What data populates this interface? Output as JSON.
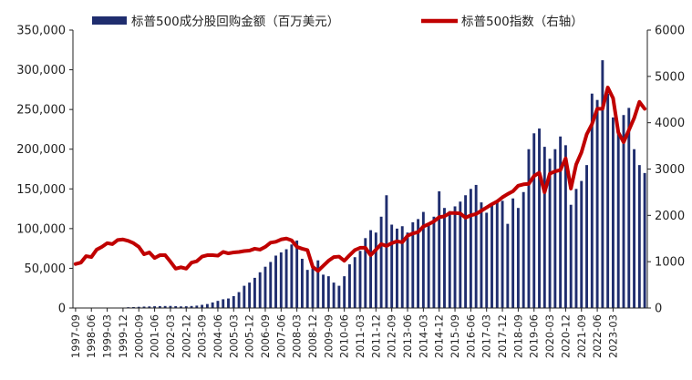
{
  "chart_data": {
    "type": "bar",
    "legend_position": "top",
    "colors": {
      "bars": "#1f2d6e",
      "line": "#c00000",
      "axis": "#222222"
    },
    "y_left": {
      "min": 0,
      "max": 350000,
      "step": 50000,
      "tick_labels": [
        "0",
        "50,000",
        "100,000",
        "150,000",
        "200,000",
        "250,000",
        "300,000",
        "350,000"
      ]
    },
    "y_right": {
      "min": 0,
      "max": 6000,
      "step": 1000,
      "tick_labels": [
        "0",
        "1000",
        "2000",
        "3000",
        "4000",
        "5000",
        "6000"
      ]
    },
    "x_tick_labels": [
      "1997-09",
      "1998-06",
      "1999-03",
      "1999-12",
      "2000-09",
      "2001-06",
      "2002-03",
      "2002-12",
      "2003-09",
      "2004-06",
      "2005-03",
      "2005-12",
      "2006-09",
      "2007-06",
      "2008-03",
      "2008-12",
      "2009-09",
      "2010-06",
      "2011-03",
      "2011-12",
      "2012-09",
      "2013-06",
      "2014-03",
      "2014-12",
      "2015-09",
      "2016-06",
      "2017-03",
      "2017-12",
      "2018-09",
      "2019-06",
      "2020-03",
      "2020-12",
      "2021-09",
      "2022-06",
      "2023-03"
    ],
    "series": [
      {
        "name": "标普500成分股回购金额（百万美元）",
        "type": "bar",
        "axis": "left",
        "start_quarter": "1997-09",
        "values": [
          0,
          0,
          0,
          0,
          0,
          0,
          0,
          0,
          0,
          0,
          1000,
          1200,
          1500,
          1800,
          2000,
          2200,
          2400,
          2500,
          2600,
          2300,
          2000,
          2200,
          2500,
          3000,
          4000,
          5000,
          7000,
          9000,
          11000,
          12000,
          15000,
          20000,
          28000,
          32000,
          38000,
          45000,
          52000,
          58000,
          66000,
          70000,
          74000,
          80000,
          85000,
          62000,
          48000,
          50000,
          60000,
          42000,
          40000,
          32000,
          28000,
          40000,
          55000,
          64000,
          72000,
          88000,
          98000,
          95000,
          115000,
          142000,
          105000,
          100000,
          103000,
          95000,
          108000,
          112000,
          121000,
          106000,
          115000,
          147000,
          126000,
          122000,
          128000,
          134000,
          142000,
          150000,
          155000,
          133000,
          120000,
          131000,
          134000,
          135000,
          106000,
          138000,
          126000,
          146000,
          200000,
          220000,
          226000,
          203000,
          188000,
          200000,
          216000,
          205000,
          130000,
          150000,
          160000,
          180000,
          270000,
          262000,
          312000,
          270000,
          240000,
          220000,
          243000,
          252000,
          200000,
          180000,
          170000
        ]
      },
      {
        "name": "标普500指数（右轴）",
        "type": "line",
        "axis": "right",
        "values": [
          950,
          980,
          1120,
          1100,
          1260,
          1320,
          1400,
          1380,
          1469,
          1480,
          1450,
          1400,
          1320,
          1160,
          1200,
          1080,
          1140,
          1140,
          1000,
          850,
          880,
          850,
          980,
          1010,
          1110,
          1140,
          1140,
          1130,
          1210,
          1180,
          1200,
          1210,
          1230,
          1240,
          1280,
          1260,
          1320,
          1410,
          1430,
          1480,
          1500,
          1460,
          1320,
          1280,
          1250,
          890,
          800,
          910,
          1020,
          1100,
          1110,
          1020,
          1140,
          1250,
          1300,
          1300,
          1140,
          1260,
          1380,
          1340,
          1400,
          1440,
          1420,
          1560,
          1610,
          1640,
          1760,
          1810,
          1870,
          1960,
          1980,
          2050,
          2050,
          2040,
          1950,
          2000,
          2030,
          2100,
          2170,
          2240,
          2300,
          2390,
          2460,
          2520,
          2640,
          2670,
          2680,
          2850,
          2920,
          2500,
          2900,
          2950,
          2980,
          3230,
          2580,
          3100,
          3360,
          3750,
          3970,
          4300,
          4300,
          4760,
          4530,
          3790,
          3580,
          3840,
          4100,
          4450,
          4300
        ]
      }
    ]
  }
}
